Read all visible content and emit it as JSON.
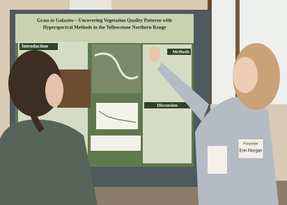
{
  "poster": {
    "title_lines": [
      "Grass to Galaxies – Uncovering Vegetation Quality Patterns with",
      "Hyperspectral Methods in the Yellowstone Northern Range"
    ],
    "sections": [
      "Introduction",
      "Methods",
      "Discussion"
    ]
  },
  "badge": {
    "role": "Presenter",
    "name": "Erin Morgan"
  }
}
